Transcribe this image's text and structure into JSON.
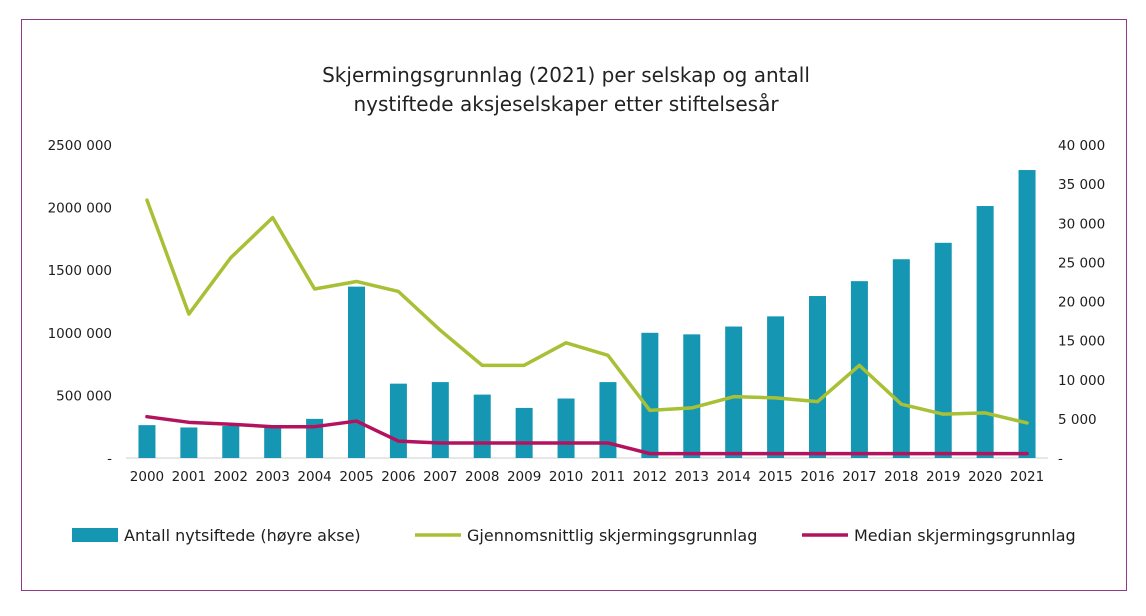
{
  "chart_data": {
    "type": "bar",
    "title_line1": "Skjermingsgrunnlag (2021) per selskap og antall",
    "title_line2": "nystiftede aksjeselskaper etter stiftelsesår",
    "categories": [
      "2000",
      "2001",
      "2002",
      "2003",
      "2004",
      "2005",
      "2006",
      "2007",
      "2008",
      "2009",
      "2010",
      "2011",
      "2012",
      "2013",
      "2014",
      "2015",
      "2016",
      "2017",
      "2018",
      "2019",
      "2020",
      "2021"
    ],
    "left_axis": {
      "ylim": [
        0,
        2500000
      ],
      "ticks": [
        "-",
        "500 000",
        "1000 000",
        "1500 000",
        "2000 000",
        "2500 000"
      ]
    },
    "right_axis": {
      "ylim": [
        0,
        40000
      ],
      "ticks": [
        "-",
        "5 000",
        "10 000",
        "15 000",
        "20 000",
        "25 000",
        "30 000",
        "35 000",
        "40 000"
      ]
    },
    "series": [
      {
        "name": "Antall nytsiftede (høyre akse)",
        "type": "bar",
        "axis": "right",
        "color": "#1596b3",
        "values": [
          4200,
          3900,
          4100,
          3900,
          5000,
          21900,
          9500,
          9700,
          8100,
          6400,
          7600,
          9700,
          16000,
          15800,
          16800,
          18100,
          20700,
          22600,
          25400,
          27500,
          32200,
          36800
        ]
      },
      {
        "name": "Gjennomsnittlig skjermingsgrunnlag",
        "type": "line",
        "axis": "left",
        "color": "#a8c035",
        "values": [
          2060000,
          1150000,
          1600000,
          1920000,
          1350000,
          1410000,
          1330000,
          1020000,
          740000,
          740000,
          920000,
          820000,
          380000,
          400000,
          490000,
          480000,
          450000,
          740000,
          430000,
          350000,
          360000,
          280000
        ]
      },
      {
        "name": "Median skjermingsgrunnlag",
        "type": "line",
        "axis": "left",
        "color": "#b3135e",
        "values": [
          330000,
          285000,
          270000,
          250000,
          250000,
          295000,
          135000,
          120000,
          120000,
          120000,
          120000,
          120000,
          35000,
          35000,
          35000,
          35000,
          35000,
          35000,
          35000,
          35000,
          35000,
          35000
        ]
      }
    ],
    "legend_position": "bottom",
    "grid": false
  }
}
